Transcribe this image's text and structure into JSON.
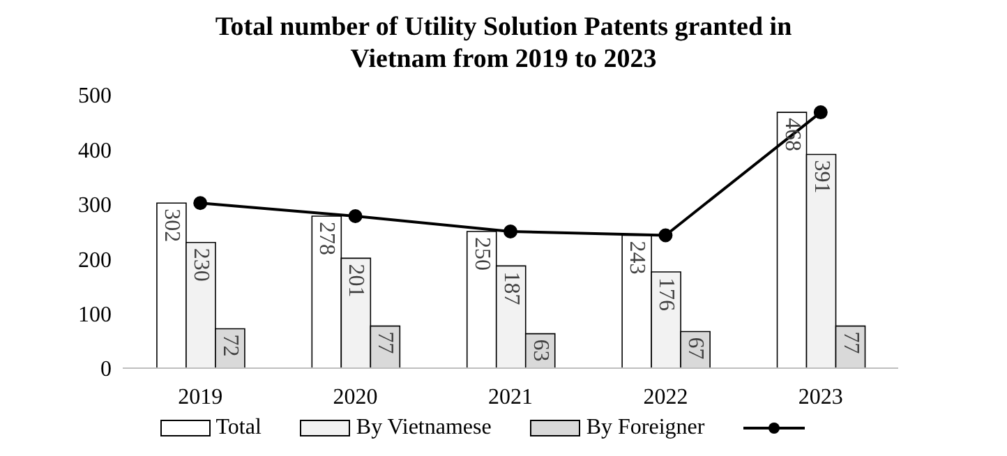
{
  "chart_data": {
    "type": "bar",
    "title": "Total number of Utility Solution Patents granted in Vietnam from 2019 to 2023",
    "categories": [
      "2019",
      "2020",
      "2021",
      "2022",
      "2023"
    ],
    "series": [
      {
        "name": "Total",
        "color": "#ffffff",
        "values": [
          302,
          278,
          250,
          243,
          468
        ],
        "value_labels": [
          "302",
          "278",
          "250",
          "243",
          "468"
        ]
      },
      {
        "name": "By Vietnamese",
        "color": "#f2f2f2",
        "values": [
          230,
          201,
          187,
          176,
          391
        ],
        "value_labels": [
          "230",
          "201",
          "187",
          "176",
          "391"
        ]
      },
      {
        "name": "By Foreigner",
        "color": "#d9d9d9",
        "values": [
          72,
          77,
          63,
          67,
          77
        ],
        "value_labels": [
          "72",
          "77",
          "63",
          "67",
          "77"
        ]
      },
      {
        "type": "line",
        "color": "#000000",
        "values": [
          302,
          278,
          250,
          243,
          468
        ]
      }
    ],
    "ylim": [
      0,
      500
    ],
    "yticks": [
      0,
      100,
      200,
      300,
      400,
      500
    ],
    "legend": "bottom",
    "marker": "circle",
    "line_style": "solid"
  }
}
